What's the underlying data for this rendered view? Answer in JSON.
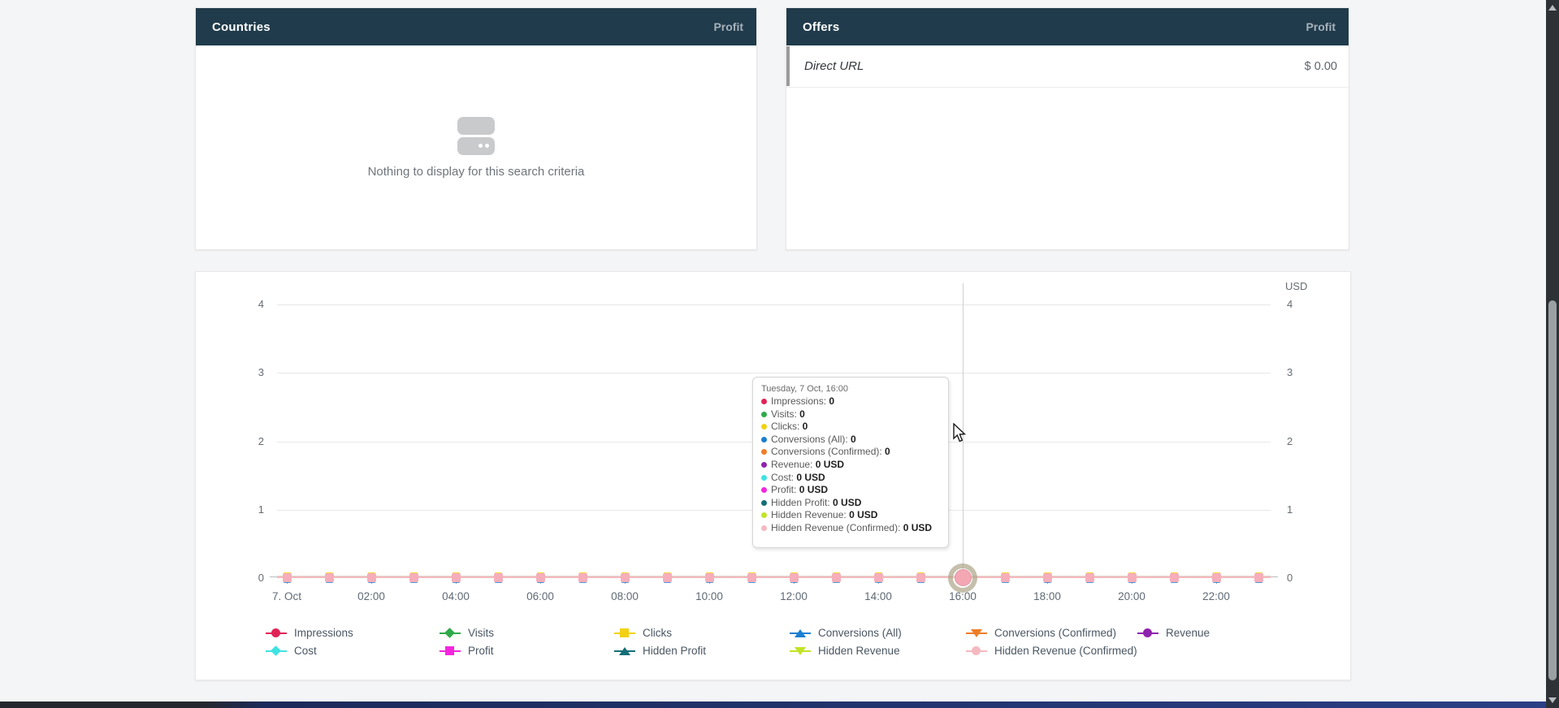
{
  "panels": {
    "countries": {
      "title": "Countries",
      "metric_label": "Profit",
      "empty_icon": "server-icon",
      "empty_text": "Nothing to display for this search criteria"
    },
    "offers": {
      "title": "Offers",
      "metric_label": "Profit",
      "rows": [
        {
          "name": "Direct URL",
          "value": "$ 0.00"
        }
      ]
    }
  },
  "chart_data": {
    "type": "line",
    "title": "",
    "unit_label": "USD",
    "x_type": "hourly",
    "x_points": 24,
    "x_tick_labels": [
      "7. Oct",
      "02:00",
      "04:00",
      "06:00",
      "08:00",
      "10:00",
      "12:00",
      "14:00",
      "16:00",
      "18:00",
      "20:00",
      "22:00"
    ],
    "y_ticks": [
      "0",
      "1",
      "2",
      "3",
      "4"
    ],
    "ylim": [
      0,
      4
    ],
    "grid": true,
    "legend_position": "bottom",
    "highlight_hour": 16,
    "note": "every series is flat zero for all 24 hourly points",
    "shared_values": [
      0,
      0,
      0,
      0,
      0,
      0,
      0,
      0,
      0,
      0,
      0,
      0,
      0,
      0,
      0,
      0,
      0,
      0,
      0,
      0,
      0,
      0,
      0,
      0
    ],
    "series": [
      {
        "name": "Impressions",
        "color": "#e02355",
        "marker": "circle",
        "tooltip_value": "0"
      },
      {
        "name": "Visits",
        "color": "#2faa4a",
        "marker": "diamond",
        "tooltip_value": "0"
      },
      {
        "name": "Clicks",
        "color": "#f2d113",
        "marker": "square",
        "tooltip_value": "0"
      },
      {
        "name": "Conversions (All)",
        "color": "#1a7fd2",
        "marker": "triangle-up",
        "tooltip_value": "0"
      },
      {
        "name": "Conversions (Confirmed)",
        "color": "#ef7d26",
        "marker": "triangle-down",
        "tooltip_value": "0"
      },
      {
        "name": "Revenue",
        "color": "#8e23ad",
        "marker": "circle",
        "tooltip_value": "0 USD"
      },
      {
        "name": "Cost",
        "color": "#3fe3e3",
        "marker": "diamond",
        "tooltip_value": "0 USD"
      },
      {
        "name": "Profit",
        "color": "#f326dd",
        "marker": "square",
        "tooltip_value": "0 USD"
      },
      {
        "name": "Hidden Profit",
        "color": "#156e78",
        "marker": "triangle-up",
        "tooltip_value": "0 USD"
      },
      {
        "name": "Hidden Revenue",
        "color": "#c2e426",
        "marker": "triangle-down",
        "tooltip_value": "0 USD"
      },
      {
        "name": "Hidden Revenue (Confirmed)",
        "color": "#f5b9c0",
        "marker": "circle",
        "tooltip_value": "0 USD"
      }
    ],
    "tooltip": {
      "title": "Tuesday, 7 Oct, 16:00"
    }
  },
  "colors": {
    "panel_header_bg": "#203b4b",
    "panel_metric_text": "#a6b1ba",
    "page_bg": "#f4f5f6",
    "zero_line": "#f6b8c0",
    "point_fill": "#f6aeba",
    "halo": "rgba(166,156,126,0.65)"
  }
}
